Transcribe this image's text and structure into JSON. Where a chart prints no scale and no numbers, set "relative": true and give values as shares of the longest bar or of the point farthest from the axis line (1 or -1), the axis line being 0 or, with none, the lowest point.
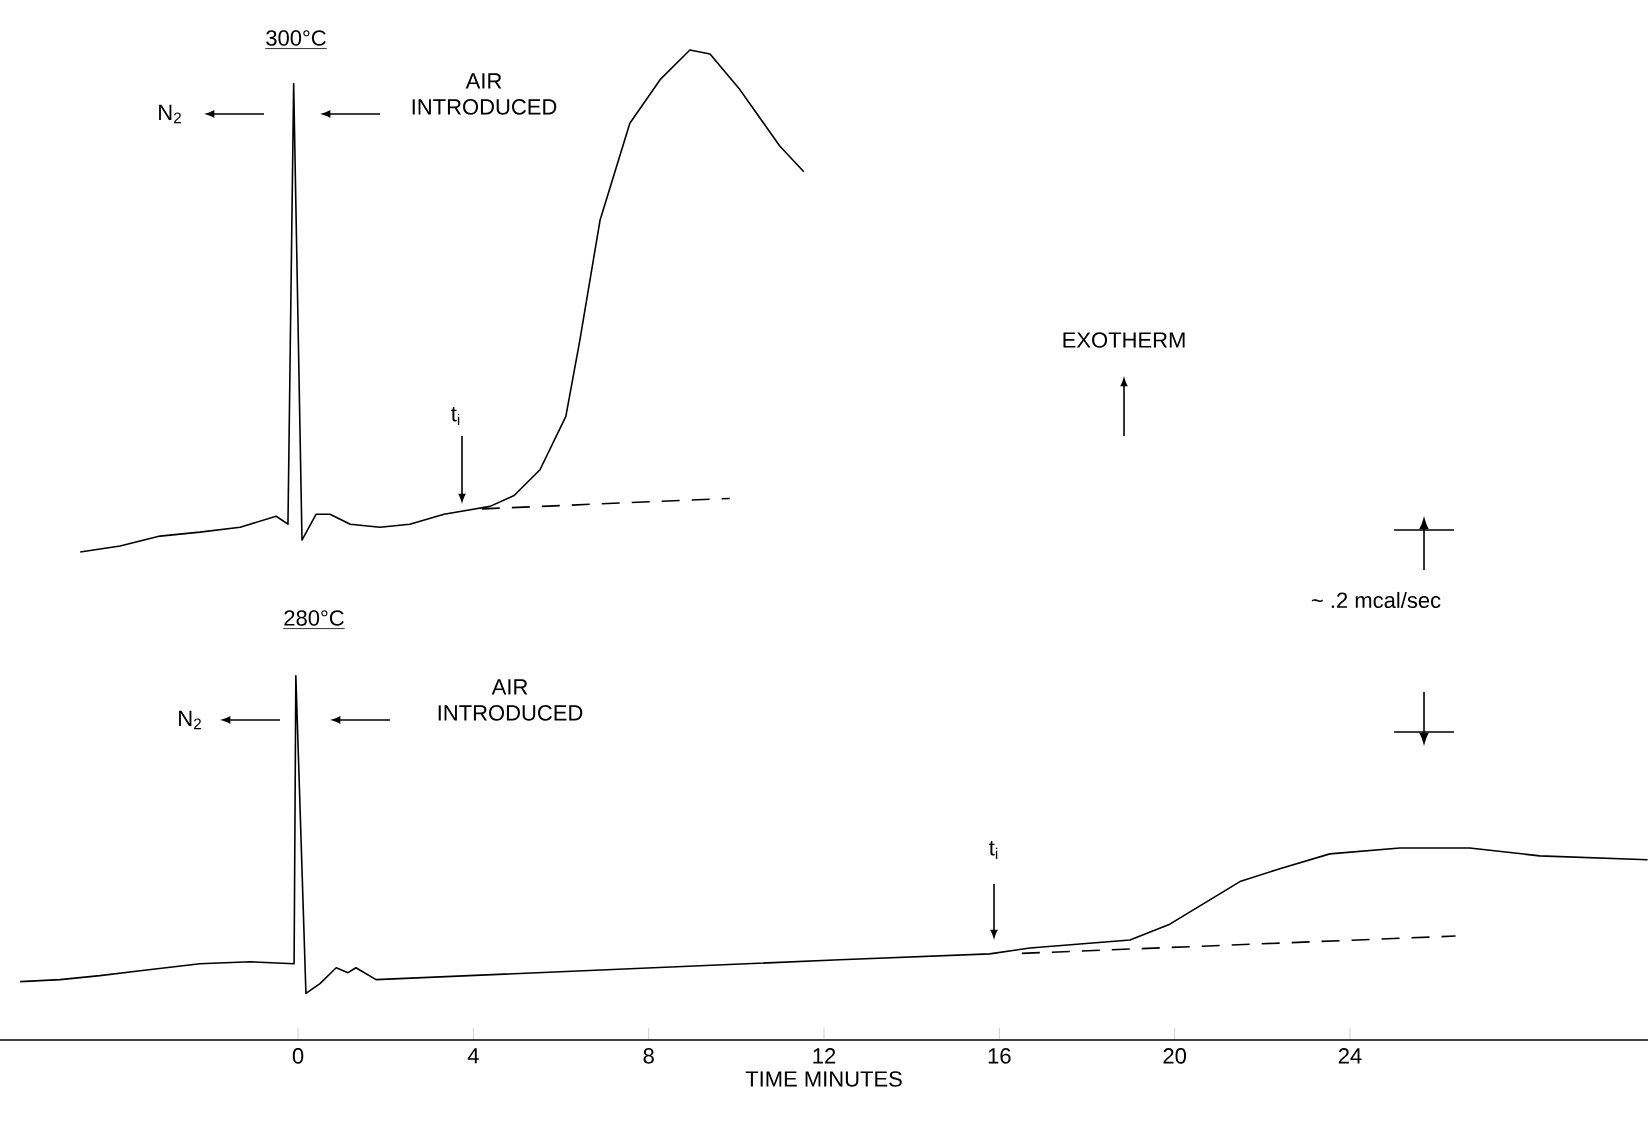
{
  "chart_data": {
    "type": "line",
    "relative": true,
    "xlabel": "TIME MINUTES",
    "xlim": [
      -6.8,
      30.8
    ],
    "xticks": [
      0,
      4,
      8,
      12,
      16,
      20,
      24
    ],
    "series": [
      {
        "color": "#000000",
        "line_style": "solid",
        "x": [
          -4.97,
          -4.06,
          -3.15,
          -2.24,
          -1.32,
          -0.5,
          -0.23,
          -0.1,
          0.09,
          0.41,
          0.73,
          1.19,
          1.87,
          2.55,
          3.33,
          4.38,
          4.93,
          5.52,
          6.11,
          6.43,
          6.89,
          7.57,
          8.26,
          8.94,
          9.4,
          10.08,
          10.99,
          11.54
        ],
        "values": [
          0.493,
          0.499,
          0.509,
          0.513,
          0.518,
          0.529,
          0.521,
          0.966,
          0.505,
          0.531,
          0.531,
          0.521,
          0.518,
          0.521,
          0.531,
          0.539,
          0.55,
          0.576,
          0.63,
          0.707,
          0.828,
          0.926,
          0.97,
          1.0,
          0.996,
          0.96,
          0.903,
          0.877
        ]
      },
      {
        "color": "#000000",
        "line_style": "dashed",
        "x": [
          3.92,
          9.85
        ],
        "values": [
          0.536,
          0.547
        ]
      },
      {
        "color": "#000000",
        "line_style": "solid",
        "x": [
          -6.34,
          -5.43,
          -4.52,
          -3.6,
          -2.24,
          -1.09,
          -0.09,
          -0.05,
          0.18,
          0.5,
          0.87,
          1.14,
          1.32,
          1.78,
          12.36,
          15.78,
          16.7,
          18.98,
          19.89,
          21.49,
          22.4,
          23.54,
          25.14,
          26.73,
          28.33,
          30.79
        ],
        "values": [
          0.059,
          0.061,
          0.065,
          0.07,
          0.077,
          0.079,
          0.077,
          0.368,
          0.047,
          0.057,
          0.073,
          0.068,
          0.073,
          0.061,
          0.081,
          0.087,
          0.093,
          0.101,
          0.117,
          0.16,
          0.173,
          0.188,
          0.194,
          0.194,
          0.186,
          0.182
        ]
      },
      {
        "color": "#000000",
        "line_style": "dashed",
        "x": [
          16.24,
          26.41
        ],
        "values": [
          0.087,
          0.105
        ]
      }
    ],
    "annotations": [
      "300°C",
      "N$_{2}$",
      "AIR INTRODUCED",
      "t$_{i}$",
      "EXOTHERM",
      "~ .2 mcal/sec",
      "280°C",
      "N$_{2}$",
      "AIR INTRODUCED",
      "t$_{i}$"
    ]
  }
}
